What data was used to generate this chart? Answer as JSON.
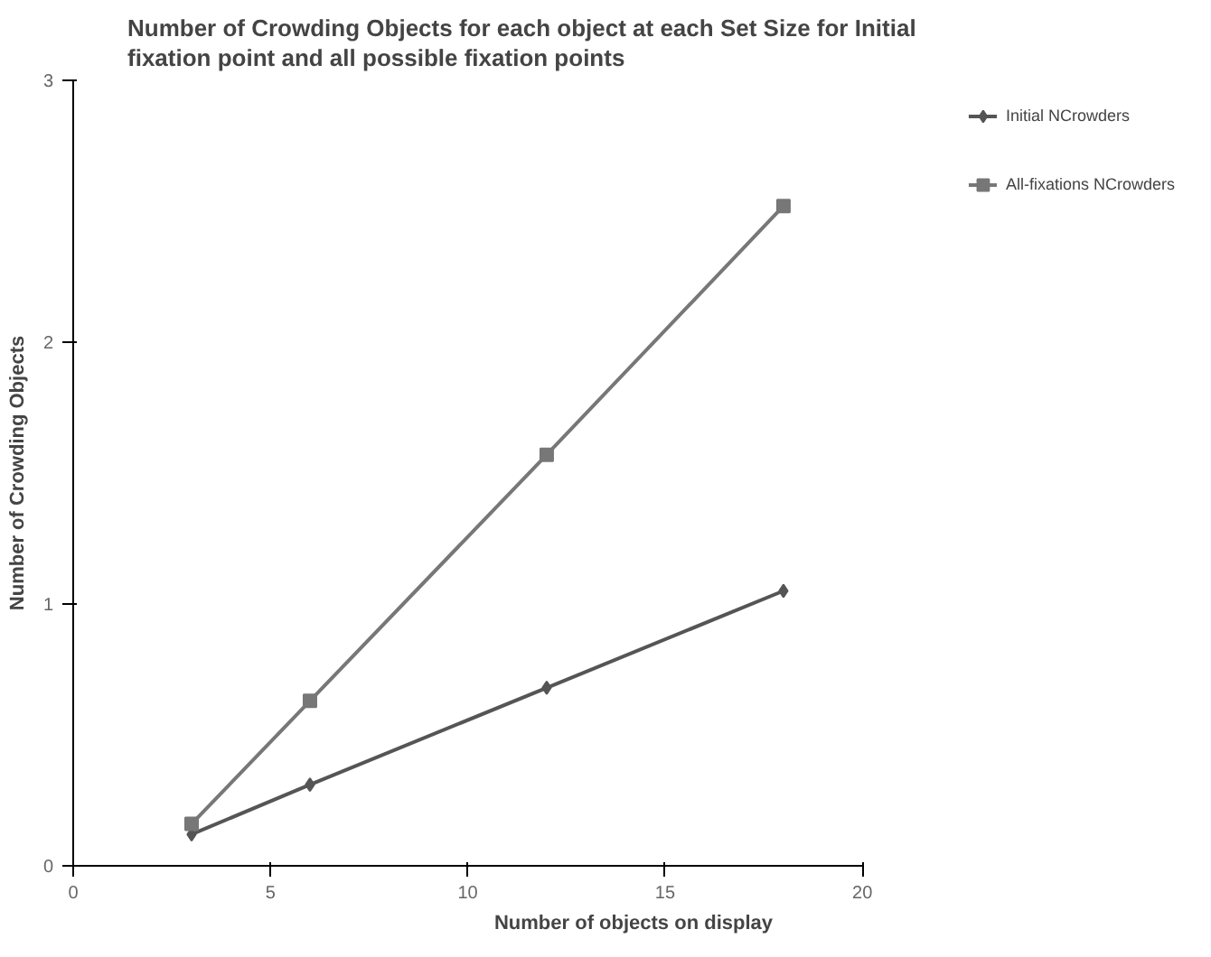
{
  "chart_data": {
    "type": "line",
    "title": "Number of Crowding Objects for each object at each Set Size for Initial fixation point and all possible fixation points",
    "xlabel": "Number of objects on display",
    "ylabel": "Number of Crowding Objects",
    "x": [
      3,
      6,
      12,
      18
    ],
    "series": [
      {
        "name": "Initial NCrowders",
        "color": "#555555",
        "marker": "diamond",
        "values": [
          0.12,
          0.31,
          0.68,
          1.05
        ]
      },
      {
        "name": "All-fixations NCrowders",
        "color": "#777777",
        "marker": "square",
        "values": [
          0.16,
          0.63,
          1.57,
          2.52
        ]
      }
    ],
    "xlim": [
      0,
      20
    ],
    "xticks": [
      0,
      5,
      10,
      15,
      20
    ],
    "ylim": [
      0,
      3
    ],
    "yticks": [
      0,
      1,
      2,
      3
    ],
    "grid": false,
    "legend": "right",
    "line_style": "solid"
  }
}
